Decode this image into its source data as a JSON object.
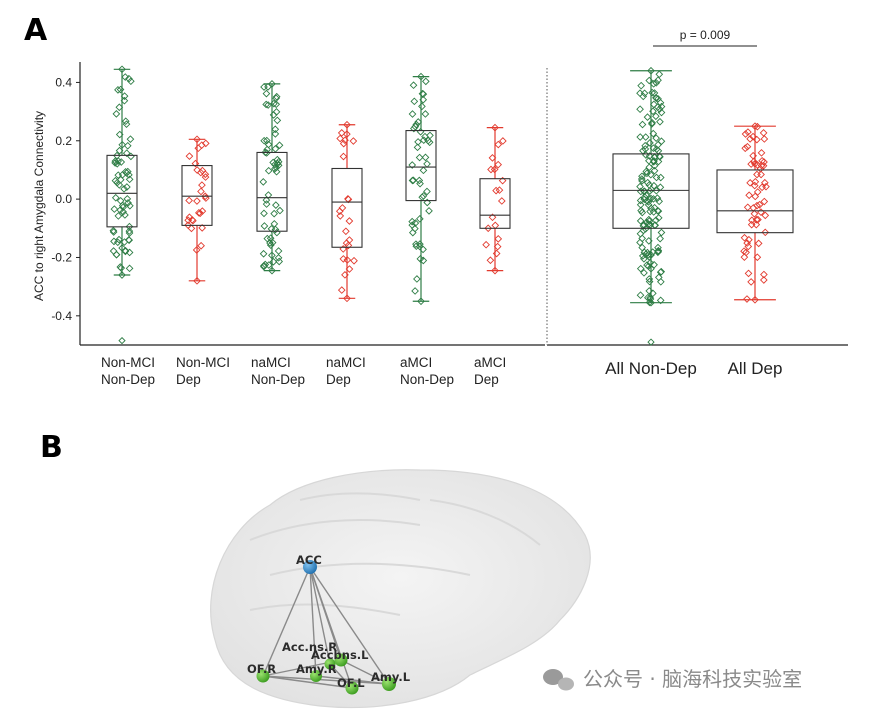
{
  "panels": {
    "a_label": "A",
    "b_label": "B"
  },
  "chart_data": [
    {
      "type": "box",
      "ylabel": "ACC to right Amygdala Connectivity",
      "ylim": [
        -0.5,
        0.47
      ],
      "yticks": [
        -0.4,
        -0.2,
        0.0,
        0.2,
        0.4
      ],
      "ytick_labels": [
        "-0.4",
        "-0.2",
        "0.0",
        "0.2",
        "0.4"
      ],
      "groups": [
        {
          "label_lines": [
            "Non-MCI",
            "Non-Dep"
          ],
          "color": "green",
          "whisker_low": -0.26,
          "q1": -0.095,
          "median": 0.02,
          "q3": 0.15,
          "whisker_high": 0.445,
          "outliers": [
            -0.485
          ],
          "n_points": 70
        },
        {
          "label_lines": [
            "Non-MCI",
            "Dep"
          ],
          "color": "red",
          "whisker_low": -0.28,
          "q1": -0.09,
          "median": 0.01,
          "q3": 0.115,
          "whisker_high": 0.205,
          "outliers": [],
          "n_points": 28
        },
        {
          "label_lines": [
            "naMCI",
            "Non-Dep"
          ],
          "color": "green",
          "whisker_low": -0.245,
          "q1": -0.11,
          "median": 0.005,
          "q3": 0.16,
          "whisker_high": 0.395,
          "outliers": [],
          "n_points": 60
        },
        {
          "label_lines": [
            "naMCI",
            "Dep"
          ],
          "color": "red",
          "whisker_low": -0.34,
          "q1": -0.165,
          "median": -0.01,
          "q3": 0.105,
          "whisker_high": 0.255,
          "outliers": [],
          "n_points": 24
        },
        {
          "label_lines": [
            "aMCI",
            "Non-Dep"
          ],
          "color": "green",
          "whisker_low": -0.35,
          "q1": -0.005,
          "median": 0.11,
          "q3": 0.235,
          "whisker_high": 0.42,
          "outliers": [],
          "n_points": 50
        },
        {
          "label_lines": [
            "aMCI",
            "Dep"
          ],
          "color": "red",
          "whisker_low": -0.245,
          "q1": -0.1,
          "median": -0.055,
          "q3": 0.07,
          "whisker_high": 0.245,
          "outliers": [],
          "n_points": 18
        }
      ],
      "combined": [
        {
          "label": "All Non-Dep",
          "color": "green",
          "whisker_low": -0.355,
          "q1": -0.1,
          "median": 0.03,
          "q3": 0.155,
          "whisker_high": 0.44,
          "outliers": [
            -0.49
          ],
          "n_points": 150
        },
        {
          "label": "All Dep",
          "color": "red",
          "whisker_low": -0.345,
          "q1": -0.115,
          "median": -0.04,
          "q3": 0.1,
          "whisker_high": 0.25,
          "outliers": [],
          "n_points": 60
        }
      ],
      "annotation": "p = 0.009",
      "colors": {
        "green": "#2e7d45",
        "red": "#e23a2e",
        "box": "#333333"
      }
    }
  ],
  "network": {
    "nodes": [
      {
        "label": "ACC",
        "color": "#3a8fd0"
      },
      {
        "label": "Acc.ns.R",
        "color": "#5bc236"
      },
      {
        "label": "Accbns.L",
        "color": "#5bc236"
      },
      {
        "label": "OF.R",
        "color": "#5bc236"
      },
      {
        "label": "Amy.R",
        "color": "#5bc236"
      },
      {
        "label": "OF.L",
        "color": "#5bc236"
      },
      {
        "label": "Amy.L",
        "color": "#5bc236"
      }
    ]
  },
  "watermark": "公众号 · 脑海科技实验室"
}
